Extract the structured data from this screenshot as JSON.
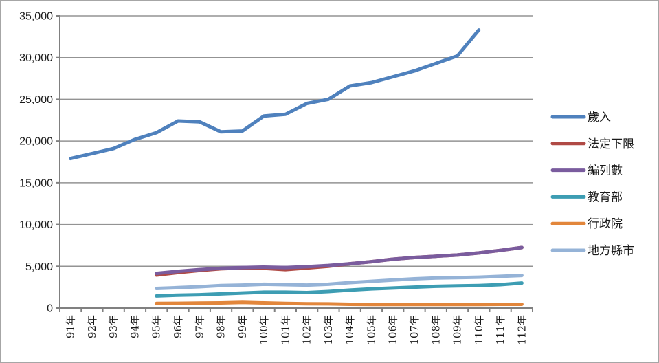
{
  "chart_data": {
    "type": "line",
    "title": "",
    "xlabel": "",
    "ylabel": "",
    "ylim": [
      0,
      35000
    ],
    "y_tick_step": 5000,
    "y_tick_labels": [
      "0",
      "5,000",
      "10,000",
      "15,000",
      "20,000",
      "25,000",
      "30,000",
      "35,000"
    ],
    "grid": true,
    "legend_position": "right",
    "categories": [
      "91年",
      "92年",
      "93年",
      "94年",
      "95年",
      "96年",
      "97年",
      "98年",
      "99年",
      "100年",
      "101年",
      "102年",
      "103年",
      "104年",
      "105年",
      "106年",
      "107年",
      "108年",
      "109年",
      "110年",
      "111年",
      "112年"
    ],
    "series": [
      {
        "name": "歲入",
        "color": "#4F81BD",
        "start_index": 0,
        "values": [
          17900,
          18500,
          19100,
          20200,
          21000,
          22400,
          22300,
          21100,
          21200,
          23000,
          23200,
          24500,
          25000,
          26600,
          27000,
          27700,
          28400,
          29300,
          30200,
          33300
        ]
      },
      {
        "name": "法定下限",
        "color": "#B04A45",
        "start_index": 4,
        "values": [
          3950,
          4250,
          4500,
          4700,
          4800,
          4750,
          4600,
          4800,
          5000,
          5300,
          5550,
          5850,
          6050,
          6200,
          6350,
          6600,
          6900,
          7250
        ]
      },
      {
        "name": "編列數",
        "color": "#7A5C9E",
        "start_index": 4,
        "values": [
          4150,
          4400,
          4600,
          4750,
          4850,
          4900,
          4850,
          4950,
          5100,
          5300,
          5550,
          5850,
          6050,
          6200,
          6350,
          6600,
          6900,
          7250
        ]
      },
      {
        "name": "教育部",
        "color": "#3D9DB3",
        "start_index": 4,
        "values": [
          1450,
          1550,
          1600,
          1700,
          1800,
          1900,
          1900,
          1850,
          1980,
          2150,
          2300,
          2400,
          2500,
          2600,
          2650,
          2700,
          2800,
          3000
        ]
      },
      {
        "name": "行政院",
        "color": "#E2863B",
        "start_index": 4,
        "values": [
          550,
          570,
          590,
          620,
          680,
          620,
          550,
          520,
          500,
          450,
          430,
          430,
          430,
          430,
          430,
          440,
          450,
          450
        ]
      },
      {
        "name": "地方縣市",
        "color": "#95B3D7",
        "start_index": 4,
        "values": [
          2350,
          2450,
          2550,
          2700,
          2750,
          2850,
          2800,
          2750,
          2850,
          3050,
          3200,
          3350,
          3500,
          3600,
          3650,
          3700,
          3800,
          3900
        ]
      }
    ],
    "axis_color": "#808080",
    "gridline_color": "#939393"
  }
}
